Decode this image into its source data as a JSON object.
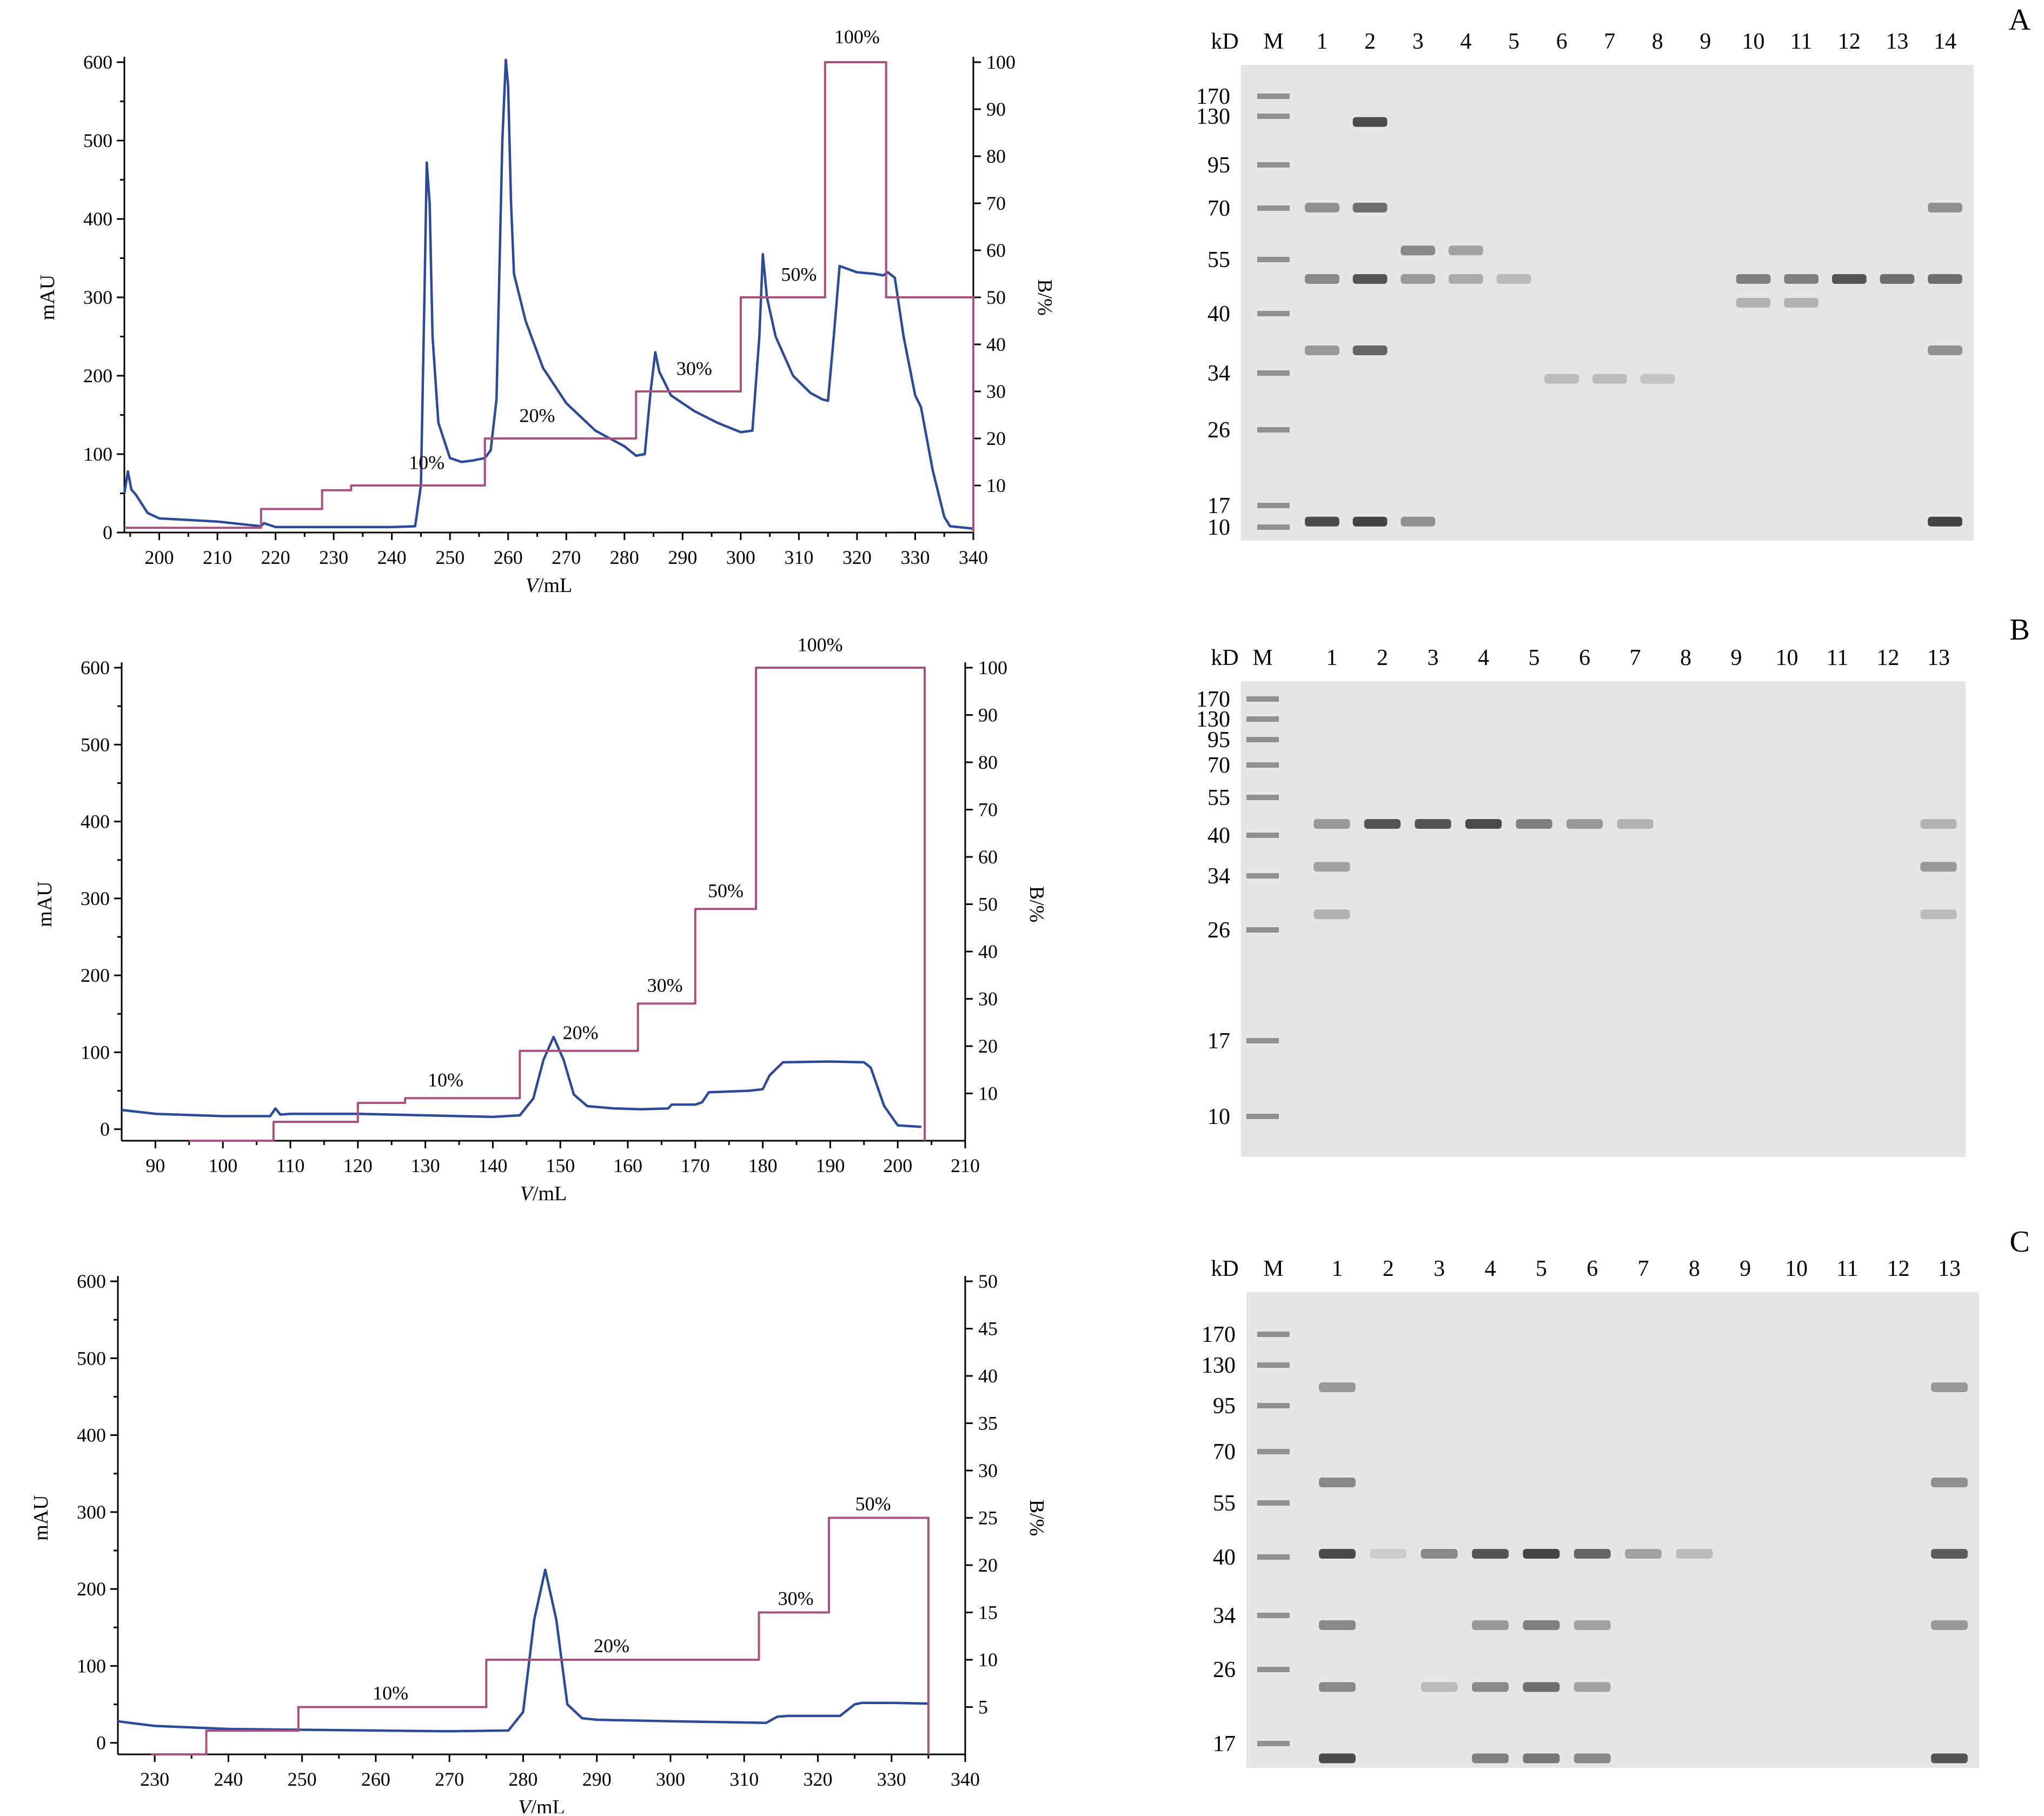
{
  "colors": {
    "absorbance": "#2b4a9a",
    "gradient": "#a8507e",
    "gel_bg": "#e6e6e4",
    "band": "#3a3a3a"
  },
  "chart_data": [
    {
      "type": "line",
      "panel": "A",
      "xlabel": "V/mL",
      "ylabel": "mAU",
      "y2label": "B/%",
      "xlim": [
        194,
        340
      ],
      "ylim": [
        0,
        600
      ],
      "y2lim": [
        0,
        100
      ],
      "xticks": [
        200,
        210,
        220,
        230,
        240,
        250,
        260,
        270,
        280,
        290,
        300,
        310,
        320,
        330,
        340
      ],
      "yticks": [
        0,
        100,
        200,
        300,
        400,
        500,
        600
      ],
      "y2ticks": [
        10,
        20,
        30,
        40,
        50,
        60,
        70,
        80,
        90,
        100
      ],
      "series": [
        {
          "axis": "left",
          "x": [
            194,
            194.6,
            195.2,
            196,
            198,
            200,
            205,
            210,
            215,
            217.5,
            218,
            220,
            230,
            240,
            244,
            245,
            245.6,
            246,
            246.5,
            247,
            248,
            250,
            252,
            254,
            256,
            257,
            258,
            259,
            259.6,
            260,
            260.5,
            261,
            263,
            266,
            270,
            275,
            280,
            282,
            283.5,
            284.5,
            285.3,
            286,
            288,
            292,
            296,
            300,
            302,
            303.2,
            303.8,
            304.5,
            306,
            309,
            312,
            314,
            315,
            316,
            317,
            320,
            323,
            324.5,
            325.3,
            326.5,
            328,
            330,
            331,
            333,
            335,
            336,
            340
          ],
          "y": [
            50,
            78,
            55,
            48,
            25,
            18,
            16,
            14,
            10,
            8,
            12,
            7,
            7,
            7,
            8,
            60,
            300,
            472,
            420,
            250,
            140,
            95,
            90,
            92,
            95,
            105,
            170,
            500,
            603,
            570,
            420,
            330,
            270,
            210,
            165,
            130,
            110,
            98,
            100,
            180,
            230,
            205,
            175,
            155,
            140,
            128,
            130,
            250,
            355,
            300,
            250,
            200,
            178,
            170,
            168,
            250,
            340,
            332,
            330,
            328,
            332,
            325,
            250,
            175,
            160,
            80,
            20,
            8,
            5
          ]
        },
        {
          "axis": "right",
          "x": [
            194,
            217.5,
            217.5,
            228,
            228,
            233,
            233,
            256,
            256,
            282,
            282,
            300,
            300,
            314.5,
            314.5,
            325,
            325,
            340,
            340
          ],
          "y": [
            1,
            1,
            5,
            5,
            9,
            9,
            10,
            10,
            20,
            20,
            30,
            30,
            50,
            50,
            100,
            100,
            50,
            50,
            0
          ]
        }
      ],
      "annotations": [
        {
          "text": "10%",
          "x": 246,
          "y2": 13.5
        },
        {
          "text": "20%",
          "x": 265,
          "y2": 23.5
        },
        {
          "text": "30%",
          "x": 292,
          "y2": 33.5
        },
        {
          "text": "50%",
          "x": 310,
          "y2": 53.5
        },
        {
          "text": "100%",
          "x": 320,
          "y2": 104
        }
      ]
    },
    {
      "type": "line",
      "panel": "B",
      "xlabel": "V/mL",
      "ylabel": "mAU",
      "y2label": "B/%",
      "xlim": [
        85,
        210
      ],
      "ylim": [
        -15,
        600
      ],
      "y2lim": [
        0,
        100
      ],
      "xticks": [
        90,
        100,
        110,
        120,
        130,
        140,
        150,
        160,
        170,
        180,
        190,
        200,
        210
      ],
      "yticks": [
        0,
        100,
        200,
        300,
        400,
        500,
        600
      ],
      "y2ticks": [
        10,
        20,
        30,
        40,
        50,
        60,
        70,
        80,
        90,
        100
      ],
      "series": [
        {
          "axis": "left",
          "x": [
            85,
            90,
            100,
            107,
            107.8,
            108.5,
            110,
            120,
            130,
            140,
            144,
            146,
            147.5,
            149,
            150.5,
            152,
            154,
            158,
            162,
            166,
            166.5,
            170,
            171,
            172,
            178,
            180,
            181,
            183,
            190,
            195,
            196,
            198,
            200,
            203.5
          ],
          "y": [
            25,
            20,
            17,
            17,
            27,
            19,
            20,
            20,
            18,
            16,
            18,
            40,
            90,
            120,
            90,
            45,
            30,
            27,
            26,
            27,
            32,
            32,
            35,
            48,
            50,
            52,
            70,
            87,
            88,
            87,
            80,
            30,
            5,
            3
          ]
        },
        {
          "axis": "right",
          "x": [
            95,
            107.5,
            107.5,
            120,
            120,
            127,
            127,
            144,
            144,
            161.5,
            161.5,
            170,
            170,
            179,
            179,
            204,
            204
          ],
          "y": [
            0,
            0,
            4,
            4,
            8,
            8,
            9,
            9,
            19,
            19,
            29,
            29,
            49,
            49,
            100,
            100,
            0
          ]
        }
      ],
      "annotations": [
        {
          "text": "10%",
          "x": 133,
          "y2": 11.5
        },
        {
          "text": "20%",
          "x": 153,
          "y2": 21.5
        },
        {
          "text": "30%",
          "x": 165.5,
          "y2": 31.5
        },
        {
          "text": "50%",
          "x": 174.5,
          "y2": 51.5
        },
        {
          "text": "100%",
          "x": 188.5,
          "y2": 103.5
        }
      ]
    },
    {
      "type": "line",
      "panel": "C",
      "xlabel": "V/mL",
      "ylabel": "mAU",
      "y2label": "B/%",
      "xlim": [
        225,
        340
      ],
      "ylim": [
        -15,
        600
      ],
      "y2lim": [
        0,
        50
      ],
      "xticks": [
        230,
        240,
        250,
        260,
        270,
        280,
        290,
        300,
        310,
        320,
        330,
        340
      ],
      "yticks": [
        0,
        100,
        200,
        300,
        400,
        500,
        600
      ],
      "y2ticks": [
        5,
        10,
        15,
        20,
        25,
        30,
        35,
        40,
        45,
        50
      ],
      "series": [
        {
          "axis": "left",
          "x": [
            225,
            230,
            240,
            250,
            260,
            270,
            278,
            280,
            281.5,
            283,
            284.5,
            286,
            288,
            290,
            300,
            313,
            314.5,
            316,
            323,
            325,
            326,
            330,
            335
          ],
          "y": [
            28,
            22,
            18,
            17,
            16,
            15,
            16,
            40,
            160,
            225,
            160,
            50,
            32,
            30,
            28,
            26,
            34,
            35,
            35,
            50,
            52,
            52,
            51
          ]
        },
        {
          "axis": "right",
          "x": [
            229.5,
            237,
            237,
            249.5,
            249.5,
            275,
            275,
            312,
            312,
            321.5,
            321.5,
            335,
            335
          ],
          "y": [
            0,
            0,
            2.5,
            2.5,
            5,
            5,
            10,
            10,
            15,
            15,
            25,
            25,
            0
          ]
        }
      ],
      "annotations": [
        {
          "text": "10%",
          "x": 262,
          "y2": 5.8
        },
        {
          "text": "20%",
          "x": 292,
          "y2": 10.8
        },
        {
          "text": "30%",
          "x": 317,
          "y2": 15.8
        },
        {
          "text": "50%",
          "x": 327.5,
          "y2": 25.8
        }
      ]
    }
  ],
  "gels": [
    {
      "letter": "A",
      "kd_label": "kD",
      "lanes": [
        "M",
        "1",
        "2",
        "3",
        "4",
        "5",
        "6",
        "7",
        "8",
        "9",
        "10",
        "11",
        "12",
        "13",
        "14"
      ],
      "markers": [
        "170",
        "130",
        "95",
        "70",
        "55",
        "40",
        "34",
        "26",
        "17",
        "10"
      ]
    },
    {
      "letter": "B",
      "kd_label": "kD",
      "lanes": [
        "M",
        "1",
        "2",
        "3",
        "4",
        "5",
        "6",
        "7",
        "8",
        "9",
        "10",
        "11",
        "12",
        "13"
      ],
      "markers": [
        "170",
        "130",
        "95",
        "70",
        "55",
        "40",
        "34",
        "26",
        "17",
        "10"
      ]
    },
    {
      "letter": "C",
      "kd_label": "kD",
      "lanes": [
        "M",
        "1",
        "2",
        "3",
        "4",
        "5",
        "6",
        "7",
        "8",
        "9",
        "10",
        "11",
        "12",
        "13"
      ],
      "markers": [
        "170",
        "130",
        "95",
        "70",
        "55",
        "40",
        "34",
        "26",
        "17"
      ]
    }
  ]
}
